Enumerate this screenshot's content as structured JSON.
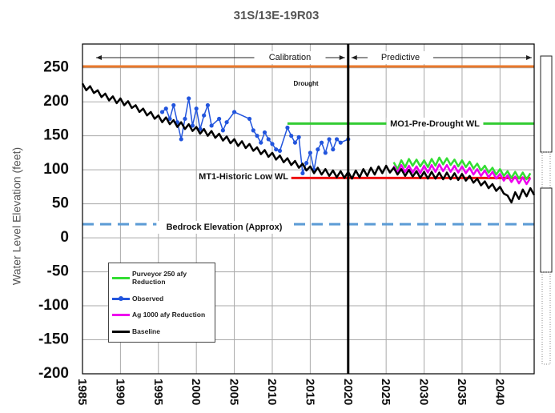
{
  "chart_data": {
    "type": "line",
    "title": "31S/13E-19R03",
    "ylabel": "Water Level Elevation (feet)",
    "xlim": [
      1985,
      2044.5
    ],
    "ylim": [
      -200,
      285
    ],
    "xticks": [
      1985,
      1990,
      1995,
      2000,
      2005,
      2010,
      2015,
      2020,
      2025,
      2030,
      2035,
      2040
    ],
    "yticks": [
      -200,
      -150,
      -100,
      -50,
      0,
      50,
      100,
      150,
      200,
      250
    ],
    "grid": true,
    "series": [
      {
        "name": "Purveyor 250 afy Reduction",
        "color": "#33dd33",
        "marker": false,
        "x": [
          2026,
          2026.5,
          2027,
          2027.5,
          2028,
          2028.5,
          2029,
          2029.5,
          2030,
          2030.5,
          2031,
          2031.5,
          2032,
          2032.5,
          2033,
          2033.5,
          2034,
          2034.5,
          2035,
          2035.5,
          2036,
          2036.5,
          2037,
          2037.5,
          2038,
          2038.5,
          2039,
          2039.5,
          2040,
          2040.5,
          2041,
          2041.5,
          2042,
          2042.5,
          2043,
          2043.5,
          2044
        ],
        "values": [
          111,
          101,
          114,
          104,
          116,
          106,
          115,
          105,
          114,
          104,
          116,
          106,
          118,
          108,
          117,
          107,
          115,
          105,
          114,
          104,
          112,
          102,
          109,
          99,
          106,
          96,
          103,
          93,
          101,
          91,
          98,
          88,
          97,
          87,
          96,
          86,
          95
        ]
      },
      {
        "name": "Observed",
        "color": "#2255dd",
        "marker": true,
        "x": [
          1995.5,
          1996,
          1996.5,
          1997,
          1997.5,
          1998,
          1998.5,
          1999,
          1999.5,
          2000,
          2000.5,
          2001,
          2001.5,
          2002,
          2003,
          2003.5,
          2004,
          2005,
          2007,
          2007.5,
          2008,
          2008.5,
          2009,
          2009.5,
          2010,
          2010.5,
          2011,
          2012,
          2012.5,
          2013,
          2013.5,
          2014,
          2014.5,
          2015,
          2015.5,
          2016,
          2016.5,
          2017,
          2017.5,
          2018,
          2018.5,
          2019,
          2020
        ],
        "values": [
          185,
          190,
          175,
          195,
          170,
          145,
          175,
          205,
          165,
          190,
          160,
          180,
          195,
          165,
          175,
          158,
          170,
          185,
          175,
          158,
          150,
          140,
          155,
          145,
          138,
          130,
          128,
          162,
          150,
          140,
          148,
          95,
          110,
          125,
          100,
          130,
          140,
          125,
          145,
          130,
          145,
          140,
          145
        ]
      },
      {
        "name": "Ag 1000 afy Reduction",
        "color": "#ee00ee",
        "marker": false,
        "x": [
          2026,
          2026.5,
          2027,
          2027.5,
          2028,
          2028.5,
          2029,
          2029.5,
          2030,
          2030.5,
          2031,
          2031.5,
          2032,
          2032.5,
          2033,
          2033.5,
          2034,
          2034.5,
          2035,
          2035.5,
          2036,
          2036.5,
          2037,
          2037.5,
          2038,
          2038.5,
          2039,
          2039.5,
          2040,
          2040.5,
          2041,
          2041.5,
          2042,
          2042.5,
          2043,
          2043.5,
          2044
        ],
        "values": [
          106,
          96,
          107,
          97,
          106,
          96,
          105,
          95,
          106,
          96,
          107,
          97,
          108,
          98,
          107,
          97,
          106,
          96,
          105,
          95,
          103,
          93,
          101,
          91,
          99,
          89,
          97,
          87,
          94,
          84,
          92,
          82,
          90,
          80,
          89,
          79,
          88
        ]
      },
      {
        "name": "Baseline",
        "color": "#000000",
        "marker": false,
        "x": [
          1985,
          1985.5,
          1986,
          1986.5,
          1987,
          1987.5,
          1988,
          1988.5,
          1989,
          1989.5,
          1990,
          1990.5,
          1991,
          1991.5,
          1992,
          1992.5,
          1993,
          1993.5,
          1994,
          1994.5,
          1995,
          1995.5,
          1996,
          1996.5,
          1997,
          1997.5,
          1998,
          1998.5,
          1999,
          1999.5,
          2000,
          2000.5,
          2001,
          2001.5,
          2002,
          2002.5,
          2003,
          2003.5,
          2004,
          2004.5,
          2005,
          2005.5,
          2006,
          2006.5,
          2007,
          2007.5,
          2008,
          2008.5,
          2009,
          2009.5,
          2010,
          2010.5,
          2011,
          2011.5,
          2012,
          2012.5,
          2013,
          2013.5,
          2014,
          2014.5,
          2015,
          2015.5,
          2016,
          2016.5,
          2017,
          2017.5,
          2018,
          2018.5,
          2019,
          2019.5,
          2020,
          2020.5,
          2021,
          2021.5,
          2022,
          2022.5,
          2023,
          2023.5,
          2024,
          2024.5,
          2025,
          2025.5,
          2026,
          2026.5,
          2027,
          2027.5,
          2028,
          2028.5,
          2029,
          2029.5,
          2030,
          2030.5,
          2031,
          2031.5,
          2032,
          2032.5,
          2033,
          2033.5,
          2034,
          2034.5,
          2035,
          2035.5,
          2036,
          2036.5,
          2037,
          2037.5,
          2038,
          2038.5,
          2039,
          2039.5,
          2040,
          2040.5,
          2041,
          2041.5,
          2042,
          2042.5,
          2043,
          2043.5,
          2044,
          2044.5
        ],
        "values": [
          227,
          217,
          223,
          213,
          217,
          207,
          212,
          202,
          208,
          198,
          205,
          195,
          201,
          191,
          195,
          185,
          190,
          180,
          185,
          175,
          180,
          170,
          177,
          167,
          173,
          163,
          170,
          160,
          167,
          157,
          163,
          153,
          160,
          150,
          157,
          147,
          153,
          143,
          149,
          139,
          145,
          135,
          142,
          132,
          138,
          128,
          133,
          123,
          129,
          119,
          125,
          115,
          121,
          111,
          117,
          107,
          113,
          103,
          109,
          99,
          105,
          95,
          103,
          93,
          101,
          91,
          99,
          89,
          98,
          88,
          97,
          87,
          99,
          89,
          101,
          91,
          103,
          93,
          105,
          95,
          106,
          96,
          103,
          93,
          101,
          91,
          100,
          90,
          98,
          88,
          97,
          87,
          97,
          87,
          96,
          86,
          96,
          86,
          95,
          85,
          94,
          84,
          91,
          81,
          87,
          77,
          83,
          73,
          79,
          69,
          75,
          65,
          62,
          52,
          67,
          57,
          71,
          61,
          73,
          63
        ]
      }
    ],
    "reference_lines": [
      {
        "label": "Drought",
        "value": 252,
        "x": [
          1985,
          2044.5
        ],
        "color": "#e8782c",
        "dashed": false
      },
      {
        "label": "MO1-Pre-Drought WL",
        "value": 168,
        "x": [
          2012,
          2044.5
        ],
        "color": "#33cc33",
        "dashed": false
      },
      {
        "label": "MT1-Historic Low WL",
        "value": 88,
        "x": [
          2012.5,
          2044
        ],
        "color": "#ee1111",
        "dashed": false
      },
      {
        "label": "Bedrock Elevation (Approx)",
        "value": 20,
        "x": [
          1985,
          2044.5
        ],
        "color": "#5b9bd5",
        "dashed": true
      }
    ],
    "vertical_line": 2020,
    "annotations": [
      "Calibration",
      "Predictive"
    ]
  }
}
